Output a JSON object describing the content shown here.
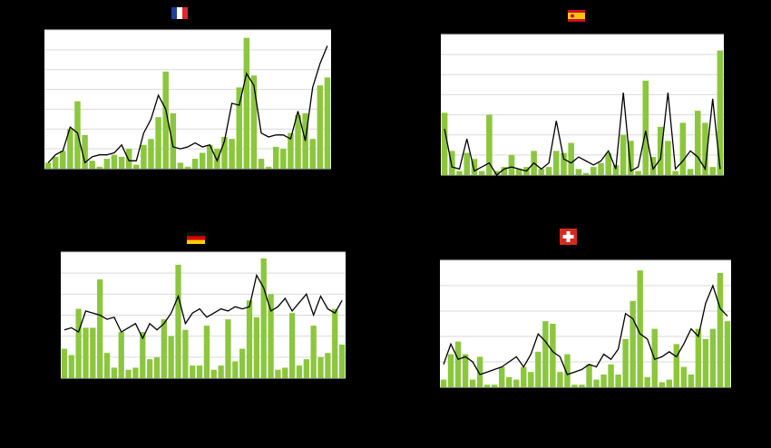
{
  "chart_data": [
    {
      "type": "bar",
      "ylim": [
        0,
        7
      ],
      "yticks": [
        0,
        1,
        2,
        3,
        4,
        5,
        6,
        7
      ],
      "grid": true,
      "series": [
        {
          "type": "bar",
          "color": "#8cc63e",
          "values": [
            0.3,
            0.6,
            0.9,
            2.0,
            3.4,
            1.7,
            0.4,
            0.1,
            0.5,
            0.7,
            0.6,
            1.0,
            0.2,
            1.2,
            1.5,
            2.6,
            4.9,
            2.8,
            0.3,
            0.1,
            0.5,
            0.8,
            1.2,
            1.0,
            1.6,
            1.5,
            4.1,
            6.6,
            4.7,
            0.5,
            0.1,
            1.1,
            1.0,
            1.8,
            2.7,
            2.8,
            1.5,
            4.2,
            4.6
          ]
        },
        {
          "type": "line",
          "color": "#000000",
          "values": [
            0.3,
            0.7,
            0.9,
            2.1,
            1.8,
            0.3,
            0.6,
            0.7,
            0.7,
            0.8,
            1.2,
            0.4,
            0.4,
            1.8,
            2.5,
            3.7,
            3.0,
            1.1,
            1.0,
            1.1,
            1.3,
            1.1,
            1.2,
            0.4,
            1.4,
            3.3,
            3.2,
            4.8,
            4.2,
            1.8,
            1.6,
            1.7,
            1.7,
            1.5,
            2.9,
            1.4,
            4.1,
            5.3,
            6.2
          ]
        }
      ]
    },
    {
      "type": "bar",
      "ylim": [
        0,
        7
      ],
      "yticks": [
        0,
        1,
        2,
        3,
        4,
        5,
        6,
        7
      ],
      "grid": true,
      "series": [
        {
          "type": "bar",
          "color": "#8cc63e",
          "values": [
            3.1,
            1.2,
            0.2,
            1.1,
            0.8,
            0.2,
            3.0,
            0.2,
            0.4,
            1.0,
            0.3,
            0.4,
            1.2,
            0.3,
            0.4,
            1.2,
            1.1,
            1.6,
            0.3,
            0.1,
            0.4,
            0.6,
            1.1,
            0.5,
            2.0,
            1.7,
            0.2,
            4.7,
            0.9,
            2.4,
            1.7,
            0.2,
            2.6,
            0.3,
            3.2,
            2.6,
            0.4,
            6.2
          ]
        },
        {
          "type": "line",
          "color": "#000000",
          "values": [
            2.3,
            0.4,
            0.3,
            1.8,
            0.2,
            0.4,
            0.6,
            0.0,
            0.3,
            0.4,
            0.3,
            0.2,
            0.6,
            0.3,
            0.6,
            2.7,
            0.8,
            0.6,
            0.9,
            0.7,
            0.5,
            0.7,
            1.2,
            0.3,
            4.1,
            0.2,
            0.4,
            2.2,
            0.3,
            0.8,
            4.1,
            0.3,
            0.7,
            1.2,
            0.9,
            0.3,
            3.8,
            0.3
          ]
        }
      ]
    },
    {
      "type": "bar",
      "ylim": [
        0,
        6
      ],
      "yticks": [
        0,
        1,
        2,
        3,
        4,
        5,
        6
      ],
      "grid": true,
      "series": [
        {
          "type": "bar",
          "color": "#8cc63e",
          "values": [
            1.4,
            1.1,
            3.3,
            2.4,
            2.4,
            4.7,
            1.2,
            0.5,
            2.2,
            0.4,
            0.5,
            2.2,
            0.9,
            1.0,
            2.8,
            2.0,
            5.4,
            2.3,
            0.6,
            0.6,
            2.5,
            0.4,
            0.6,
            2.8,
            0.8,
            1.4,
            3.7,
            2.9,
            5.7,
            4.0,
            0.4,
            0.5,
            3.1,
            0.6,
            0.9,
            2.5,
            1.0,
            1.2,
            3.3,
            1.6
          ]
        },
        {
          "type": "line",
          "color": "#000000",
          "values": [
            2.3,
            2.4,
            2.2,
            3.2,
            3.1,
            3.0,
            2.8,
            2.9,
            2.2,
            2.4,
            2.6,
            1.9,
            2.6,
            2.3,
            2.6,
            3.1,
            3.9,
            2.6,
            3.1,
            3.3,
            2.9,
            3.1,
            3.3,
            3.2,
            3.4,
            3.3,
            3.4,
            4.9,
            4.3,
            3.2,
            3.4,
            3.8,
            3.2,
            3.6,
            4.0,
            3.0,
            3.9,
            3.3,
            3.1,
            3.7
          ]
        }
      ]
    },
    {
      "type": "bar",
      "ylim": [
        0,
        5
      ],
      "yticks": [
        0,
        1,
        2,
        3,
        4,
        5
      ],
      "grid": true,
      "series": [
        {
          "type": "bar",
          "color": "#8cc63e",
          "values": [
            0.3,
            1.3,
            1.8,
            1.3,
            0.3,
            1.2,
            0.1,
            0.1,
            0.8,
            0.4,
            0.3,
            0.8,
            0.6,
            1.4,
            2.6,
            2.5,
            0.6,
            1.3,
            0.1,
            0.1,
            0.9,
            0.3,
            0.5,
            0.9,
            0.5,
            1.9,
            3.4,
            4.6,
            0.4,
            2.3,
            0.2,
            0.3,
            1.7,
            0.8,
            0.5,
            2.3,
            1.9,
            2.3,
            4.5,
            2.6
          ]
        },
        {
          "type": "line",
          "color": "#000000",
          "values": [
            0.9,
            1.7,
            1.1,
            1.2,
            1.0,
            0.5,
            0.6,
            0.7,
            0.8,
            1.0,
            1.2,
            0.8,
            1.3,
            2.1,
            1.8,
            1.4,
            1.2,
            0.5,
            0.6,
            0.7,
            0.9,
            0.8,
            1.3,
            1.1,
            1.5,
            2.9,
            2.7,
            2.1,
            1.9,
            1.1,
            1.2,
            1.4,
            1.2,
            1.7,
            2.3,
            2.0,
            3.3,
            4.0,
            3.1,
            2.8
          ]
        }
      ]
    }
  ]
}
